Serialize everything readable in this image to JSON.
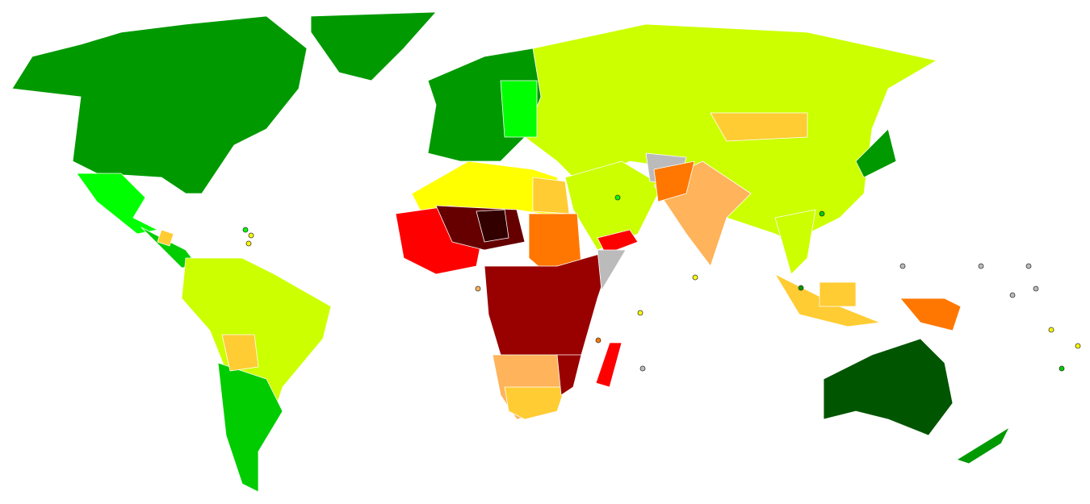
{
  "map": {
    "palette": [
      "#009900",
      "#005500",
      "#00cc00",
      "#00ff00",
      "#ccff00",
      "#ffff00",
      "#ffcc33",
      "#ffb35a",
      "#ff7700",
      "#ff0000",
      "#990000",
      "#660000",
      "#330000",
      "#bbbbbb"
    ]
  }
}
